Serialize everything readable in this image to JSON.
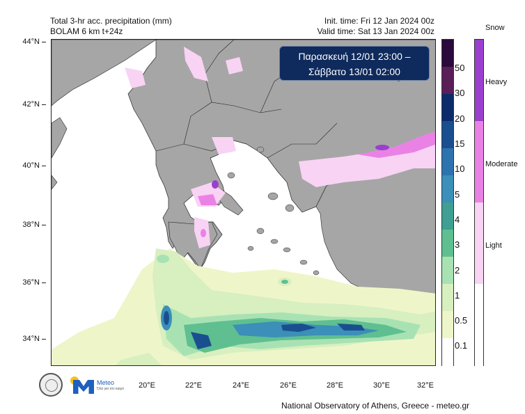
{
  "header": {
    "title": "Total 3-hr acc. precipitation (mm)",
    "model": "BOLAM 6 km t+24z",
    "init_time": "Init. time: Fri 12 Jan 2024 00z",
    "valid_time": "Valid time: Sat 13 Jan 2024 00z"
  },
  "date_box": {
    "line1": "Παρασκευή 12/01 23:00 –",
    "line2": "Σάββατο 13/01 02:00"
  },
  "map": {
    "lat_labels": [
      "44°N",
      "42°N",
      "40°N",
      "38°N",
      "36°N",
      "34°N"
    ],
    "lon_labels": [
      "20°E",
      "22°E",
      "24°E",
      "26°E",
      "28°E",
      "30°E",
      "32°E"
    ],
    "land_color": "#a6a6a6",
    "sea_color": "#ffffff"
  },
  "precip_legend": {
    "labels": [
      "50",
      "30",
      "20",
      "15",
      "10",
      "5",
      "4",
      "3",
      "2",
      "1",
      "0.5",
      "0.1"
    ],
    "colors": [
      "#2a0a3d",
      "#5a1f57",
      "#0b2b6b",
      "#1a4f8f",
      "#2d73ad",
      "#3b8fb8",
      "#3f9f93",
      "#5fbf90",
      "#a8e2b3",
      "#d8efc0",
      "#eef6c9",
      "#ffffff"
    ]
  },
  "snow_legend": {
    "title": "Snow",
    "labels": [
      "Heavy",
      "Moderate",
      "Light"
    ],
    "colors": [
      "#9b3fcf",
      "#ea82e6",
      "#f8d3f4",
      "#ffffff"
    ]
  },
  "logos": {
    "meteo_text": "Meteo",
    "meteo_sub": "Όλα για τον καιρό"
  },
  "credit": "National Observatory of Athens, Greece - meteo.gr"
}
